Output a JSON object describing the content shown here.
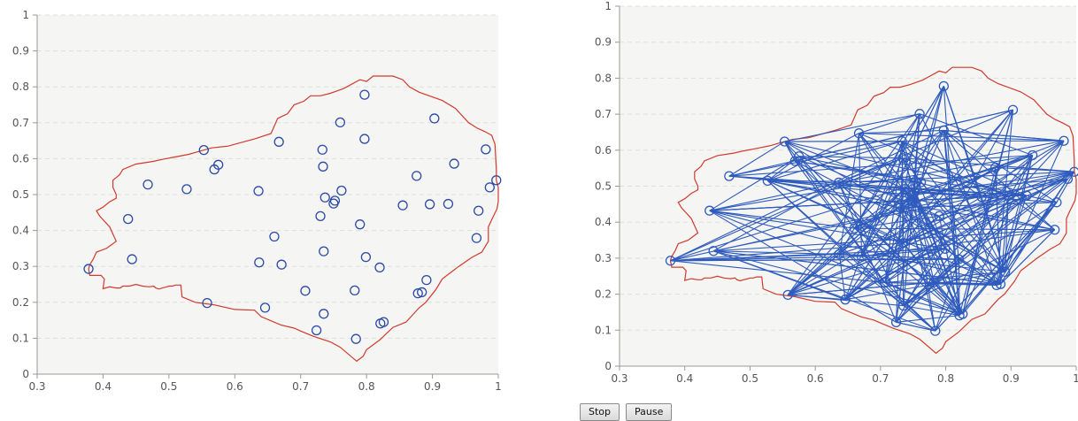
{
  "colors": {
    "plot_bg": "#f5f5f3",
    "boundary": "#d03a2e",
    "points": "#2b4aa6",
    "edges": "#2e5bbd",
    "grid": "#dedede",
    "axis": "#999999"
  },
  "controls": {
    "stop_label": "Stop",
    "pause_label": "Pause"
  },
  "chart_data": [
    {
      "type": "scatter",
      "title": "",
      "xlabel": "",
      "ylabel": "",
      "xlim": [
        0.3,
        1.0
      ],
      "ylim": [
        0,
        1
      ],
      "x_ticks": [
        "0.3",
        "0.4",
        "0.5",
        "0.6",
        "0.7",
        "0.8",
        "0.9",
        "1"
      ],
      "y_ticks": [
        "0",
        "0.1",
        "0.2",
        "0.3",
        "0.4",
        "0.5",
        "0.6",
        "0.7",
        "0.8",
        "0.9",
        "1"
      ],
      "grid": "horizontal dashed",
      "points": [
        [
          0.378,
          0.293
        ],
        [
          0.438,
          0.432
        ],
        [
          0.444,
          0.32
        ],
        [
          0.468,
          0.528
        ],
        [
          0.527,
          0.515
        ],
        [
          0.553,
          0.624
        ],
        [
          0.558,
          0.198
        ],
        [
          0.569,
          0.57
        ],
        [
          0.575,
          0.583
        ],
        [
          0.636,
          0.51
        ],
        [
          0.637,
          0.311
        ],
        [
          0.646,
          0.185
        ],
        [
          0.66,
          0.383
        ],
        [
          0.667,
          0.647
        ],
        [
          0.671,
          0.305
        ],
        [
          0.707,
          0.232
        ],
        [
          0.724,
          0.122
        ],
        [
          0.73,
          0.44
        ],
        [
          0.733,
          0.625
        ],
        [
          0.734,
          0.578
        ],
        [
          0.735,
          0.342
        ],
        [
          0.735,
          0.168
        ],
        [
          0.737,
          0.492
        ],
        [
          0.75,
          0.475
        ],
        [
          0.752,
          0.483
        ],
        [
          0.76,
          0.701
        ],
        [
          0.762,
          0.511
        ],
        [
          0.782,
          0.233
        ],
        [
          0.784,
          0.098
        ],
        [
          0.79,
          0.417
        ],
        [
          0.797,
          0.778
        ],
        [
          0.797,
          0.655
        ],
        [
          0.799,
          0.326
        ],
        [
          0.82,
          0.297
        ],
        [
          0.821,
          0.141
        ],
        [
          0.826,
          0.145
        ],
        [
          0.855,
          0.47
        ],
        [
          0.876,
          0.552
        ],
        [
          0.878,
          0.225
        ],
        [
          0.884,
          0.228
        ],
        [
          0.891,
          0.262
        ],
        [
          0.896,
          0.473
        ],
        [
          0.903,
          0.712
        ],
        [
          0.924,
          0.474
        ],
        [
          0.933,
          0.586
        ],
        [
          0.967,
          0.379
        ],
        [
          0.97,
          0.455
        ],
        [
          0.981,
          0.626
        ],
        [
          0.987,
          0.52
        ],
        [
          0.997,
          0.54
        ]
      ],
      "boundary": [
        [
          0.378,
          0.293
        ],
        [
          0.38,
          0.275
        ],
        [
          0.397,
          0.275
        ],
        [
          0.402,
          0.265
        ],
        [
          0.4,
          0.238
        ],
        [
          0.41,
          0.243
        ],
        [
          0.42,
          0.24
        ],
        [
          0.426,
          0.24
        ],
        [
          0.43,
          0.245
        ],
        [
          0.44,
          0.245
        ],
        [
          0.45,
          0.25
        ],
        [
          0.46,
          0.245
        ],
        [
          0.47,
          0.243
        ],
        [
          0.477,
          0.245
        ],
        [
          0.48,
          0.24
        ],
        [
          0.485,
          0.237
        ],
        [
          0.49,
          0.24
        ],
        [
          0.495,
          0.242
        ],
        [
          0.5,
          0.245
        ],
        [
          0.505,
          0.245
        ],
        [
          0.51,
          0.248
        ],
        [
          0.518,
          0.248
        ],
        [
          0.52,
          0.215
        ],
        [
          0.54,
          0.2
        ],
        [
          0.568,
          0.193
        ],
        [
          0.6,
          0.18
        ],
        [
          0.63,
          0.178
        ],
        [
          0.64,
          0.16
        ],
        [
          0.67,
          0.137
        ],
        [
          0.69,
          0.128
        ],
        [
          0.7,
          0.12
        ],
        [
          0.72,
          0.105
        ],
        [
          0.745,
          0.09
        ],
        [
          0.76,
          0.075
        ],
        [
          0.785,
          0.036
        ],
        [
          0.795,
          0.05
        ],
        [
          0.8,
          0.068
        ],
        [
          0.82,
          0.095
        ],
        [
          0.84,
          0.13
        ],
        [
          0.86,
          0.145
        ],
        [
          0.87,
          0.165
        ],
        [
          0.88,
          0.185
        ],
        [
          0.89,
          0.2
        ],
        [
          0.905,
          0.235
        ],
        [
          0.915,
          0.265
        ],
        [
          0.94,
          0.3
        ],
        [
          0.96,
          0.325
        ],
        [
          0.975,
          0.34
        ],
        [
          0.98,
          0.355
        ],
        [
          0.985,
          0.37
        ],
        [
          0.985,
          0.41
        ],
        [
          0.99,
          0.43
        ],
        [
          0.998,
          0.46
        ],
        [
          1.0,
          0.48
        ],
        [
          1.0,
          0.52
        ],
        [
          0.997,
          0.54
        ],
        [
          0.997,
          0.57
        ],
        [
          0.995,
          0.64
        ],
        [
          0.99,
          0.665
        ],
        [
          0.98,
          0.675
        ],
        [
          0.968,
          0.685
        ],
        [
          0.955,
          0.7
        ],
        [
          0.935,
          0.74
        ],
        [
          0.915,
          0.762
        ],
        [
          0.88,
          0.785
        ],
        [
          0.865,
          0.8
        ],
        [
          0.855,
          0.82
        ],
        [
          0.84,
          0.83
        ],
        [
          0.81,
          0.83
        ],
        [
          0.8,
          0.815
        ],
        [
          0.79,
          0.82
        ],
        [
          0.77,
          0.8
        ],
        [
          0.765,
          0.795
        ],
        [
          0.745,
          0.782
        ],
        [
          0.73,
          0.775
        ],
        [
          0.715,
          0.775
        ],
        [
          0.705,
          0.76
        ],
        [
          0.69,
          0.75
        ],
        [
          0.68,
          0.725
        ],
        [
          0.665,
          0.712
        ],
        [
          0.655,
          0.67
        ],
        [
          0.63,
          0.655
        ],
        [
          0.61,
          0.645
        ],
        [
          0.59,
          0.635
        ],
        [
          0.565,
          0.63
        ],
        [
          0.545,
          0.62
        ],
        [
          0.53,
          0.612
        ],
        [
          0.51,
          0.605
        ],
        [
          0.49,
          0.598
        ],
        [
          0.475,
          0.592
        ],
        [
          0.45,
          0.585
        ],
        [
          0.43,
          0.57
        ],
        [
          0.425,
          0.555
        ],
        [
          0.415,
          0.54
        ],
        [
          0.415,
          0.52
        ],
        [
          0.42,
          0.5
        ],
        [
          0.42,
          0.49
        ],
        [
          0.41,
          0.48
        ],
        [
          0.4,
          0.465
        ],
        [
          0.39,
          0.455
        ],
        [
          0.395,
          0.44
        ],
        [
          0.41,
          0.41
        ],
        [
          0.42,
          0.37
        ],
        [
          0.405,
          0.35
        ],
        [
          0.39,
          0.34
        ],
        [
          0.385,
          0.32
        ],
        [
          0.38,
          0.305
        ]
      ]
    },
    {
      "type": "network",
      "title": "",
      "xlabel": "",
      "ylabel": "",
      "xlim": [
        0.3,
        1.0
      ],
      "ylim": [
        0,
        1
      ],
      "x_ticks": [
        "0.3",
        "0.4",
        "0.5",
        "0.6",
        "0.7",
        "0.8",
        "0.9",
        "1"
      ],
      "y_ticks": [
        "0",
        "0.1",
        "0.2",
        "0.3",
        "0.4",
        "0.5",
        "0.6",
        "0.7",
        "0.8",
        "0.9",
        "1"
      ],
      "grid": "horizontal dashed",
      "nodes": "same points as first chart",
      "edges": "dense random connections between nodes (approx. 6 per node)"
    }
  ]
}
